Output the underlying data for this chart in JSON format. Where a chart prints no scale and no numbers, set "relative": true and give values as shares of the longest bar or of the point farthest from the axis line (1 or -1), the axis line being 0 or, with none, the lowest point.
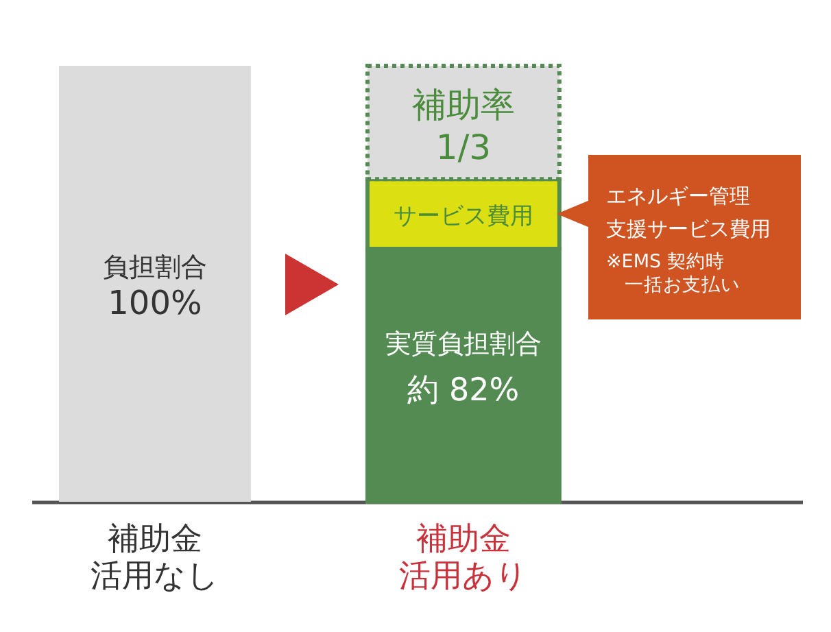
{
  "chart_data": {
    "type": "bar",
    "stacked": true,
    "relative": true,
    "categories": [
      "補助金活用なし",
      "補助金活用あり"
    ],
    "series": [
      {
        "color": "#dcdcdc",
        "values": [
          1,
          null
        ]
      },
      {
        "color": "#548b53",
        "values": [
          null,
          0.58
        ]
      },
      {
        "color": "#dcdf12",
        "values": [
          null,
          0.16
        ]
      },
      {
        "color": "#dcdcdc",
        "values": [
          null,
          0.26
        ],
        "line_style": "dotted"
      }
    ],
    "annotations": [
      "負担割合",
      "100%",
      "補助率",
      "1/3",
      "サービス費用",
      "実質負担割合",
      "約 82%",
      "エネルギー管理支援サービス費用",
      "※EMS 契約時一括お支払い"
    ]
  }
}
